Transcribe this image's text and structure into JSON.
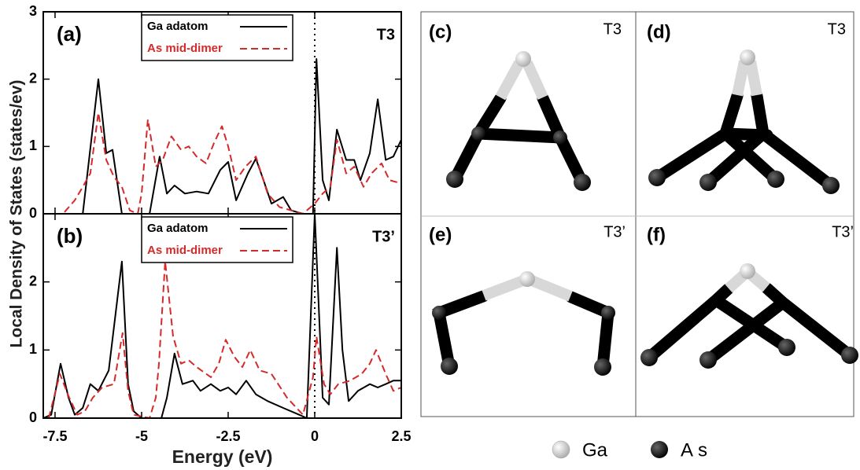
{
  "chart_data": [
    {
      "type": "line",
      "panel_label": "(a)",
      "annotation": "T3",
      "ylabel": "Local Density of States (states/ev)",
      "xlim": [
        -7.84,
        2.5
      ],
      "ylim": [
        0,
        3
      ],
      "xticks": [
        -7.5,
        -5,
        -2.5,
        0,
        2.5
      ],
      "yticks": [
        0,
        1,
        2,
        3
      ],
      "vline": 0,
      "series": [
        {
          "name": "Ga adatom",
          "color": "#000000",
          "dash": false,
          "x": [
            -7.84,
            -6.7,
            -6.25,
            -6.02,
            -5.84,
            -5.57,
            -4.77,
            -4.48,
            -4.27,
            -4.05,
            -3.75,
            -3.41,
            -3.07,
            -2.73,
            -2.5,
            -2.27,
            -1.93,
            -1.7,
            -1.48,
            -1.25,
            -0.91,
            -0.68,
            -0.34,
            -0.05,
            0.05,
            0.23,
            0.41,
            0.64,
            0.91,
            1.14,
            1.32,
            1.59,
            1.82,
            2.05,
            2.27,
            2.5
          ],
          "values": [
            0,
            0,
            2.0,
            0.9,
            0.95,
            0,
            0,
            0.85,
            0.3,
            0.42,
            0.3,
            0.33,
            0.3,
            0.65,
            0.77,
            0.2,
            0.6,
            0.82,
            0.5,
            0.15,
            0.25,
            0.05,
            0,
            0,
            2.3,
            0.5,
            0.2,
            1.25,
            0.8,
            0.8,
            0.5,
            0.9,
            1.7,
            0.8,
            0.85,
            1.1
          ]
        },
        {
          "name": "As mid-dimer",
          "color": "#d42a2a",
          "dash": true,
          "x": [
            -7.84,
            -7.27,
            -6.93,
            -6.7,
            -6.48,
            -6.25,
            -6.02,
            -5.8,
            -5.57,
            -5.34,
            -5.11,
            -5.0,
            -4.82,
            -4.59,
            -4.39,
            -4.14,
            -3.86,
            -3.64,
            -3.41,
            -3.14,
            -2.91,
            -2.68,
            -2.5,
            -2.27,
            -2.0,
            -1.7,
            -1.36,
            -1.02,
            -0.68,
            -0.34,
            0,
            0.23,
            0.45,
            0.64,
            0.91,
            1.14,
            1.41,
            1.64,
            1.93,
            2.16,
            2.5
          ],
          "values": [
            0,
            0,
            0.2,
            0.4,
            0.6,
            1.5,
            0.8,
            0.55,
            0.4,
            0.05,
            0,
            0.3,
            1.4,
            0.7,
            0.8,
            1.15,
            0.95,
            1.0,
            0.85,
            0.75,
            1.05,
            1.3,
            1.0,
            0.5,
            0.7,
            0.85,
            0.3,
            0.1,
            0.05,
            0,
            0.15,
            0.3,
            0.4,
            1.1,
            0.6,
            0.7,
            0.4,
            0.6,
            0.75,
            0.5,
            0.45
          ]
        }
      ]
    },
    {
      "type": "line",
      "panel_label": "(b)",
      "annotation": "T3’",
      "xlabel": "Energy (eV)",
      "xlim": [
        -7.84,
        2.5
      ],
      "ylim": [
        0,
        3
      ],
      "xticks": [
        -7.5,
        -5,
        -2.5,
        0,
        2.5
      ],
      "yticks": [
        0,
        1,
        2
      ],
      "vline": 0,
      "series": [
        {
          "name": "Ga adatom",
          "color": "#000000",
          "dash": false,
          "x": [
            -7.84,
            -7.61,
            -7.34,
            -7.11,
            -6.93,
            -6.7,
            -6.48,
            -6.25,
            -5.95,
            -5.57,
            -5.39,
            -5.23,
            -5.0,
            -4.43,
            -4.27,
            -4.05,
            -3.82,
            -3.52,
            -3.3,
            -3.0,
            -2.73,
            -2.5,
            -2.27,
            -1.98,
            -1.7,
            -1.36,
            -0.91,
            -0.45,
            -0.23,
            0,
            0.23,
            0.41,
            0.64,
            0.8,
            0.98,
            1.25,
            1.59,
            1.82,
            2.05,
            2.27,
            2.5
          ],
          "values": [
            0,
            0.05,
            0.8,
            0.3,
            0.05,
            0.15,
            0.5,
            0.4,
            0.7,
            2.3,
            0.5,
            0.1,
            0,
            0,
            0.3,
            0.95,
            0.5,
            0.55,
            0.4,
            0.5,
            0.4,
            0.45,
            0.35,
            0.55,
            0.35,
            0.25,
            0.15,
            0.05,
            0,
            3.0,
            0.3,
            0.2,
            2.5,
            1.0,
            0.25,
            0.4,
            0.5,
            0.45,
            0.5,
            0.55,
            0.55
          ]
        },
        {
          "name": "As mid-dimer",
          "color": "#d42a2a",
          "dash": true,
          "x": [
            -7.68,
            -7.36,
            -7.09,
            -6.86,
            -6.64,
            -6.41,
            -6.14,
            -5.8,
            -5.55,
            -5.39,
            -5.23,
            -4.77,
            -4.59,
            -4.5,
            -4.32,
            -4.09,
            -3.86,
            -3.64,
            -3.41,
            -3.0,
            -2.77,
            -2.57,
            -2.32,
            -2.09,
            -1.86,
            -1.59,
            -1.25,
            -0.8,
            -0.34,
            -0.05,
            0.05,
            0.27,
            0.45,
            0.68,
            1.02,
            1.36,
            1.59,
            1.77,
            2.05,
            2.27,
            2.5
          ],
          "values": [
            0,
            0.65,
            0.3,
            0.05,
            0.1,
            0.3,
            0.45,
            0.5,
            1.25,
            0.4,
            0.05,
            0,
            0.3,
            0.8,
            2.3,
            1.2,
            0.8,
            0.85,
            0.75,
            0.6,
            0.8,
            1.15,
            0.9,
            0.75,
            1.0,
            0.7,
            0.65,
            0.3,
            0.05,
            0.6,
            1.2,
            0.5,
            0.35,
            0.5,
            0.55,
            0.65,
            0.8,
            1.0,
            0.65,
            0.4,
            0.45
          ]
        }
      ]
    }
  ],
  "diagram": {
    "panels": [
      {
        "label": "(c)",
        "tag": "T3"
      },
      {
        "label": "(d)",
        "tag": "T3"
      },
      {
        "label": "(e)",
        "tag": "T3’"
      },
      {
        "label": "(f)",
        "tag": "T3’"
      }
    ],
    "legend": [
      {
        "label": "Ga"
      },
      {
        "label": "As"
      }
    ]
  }
}
